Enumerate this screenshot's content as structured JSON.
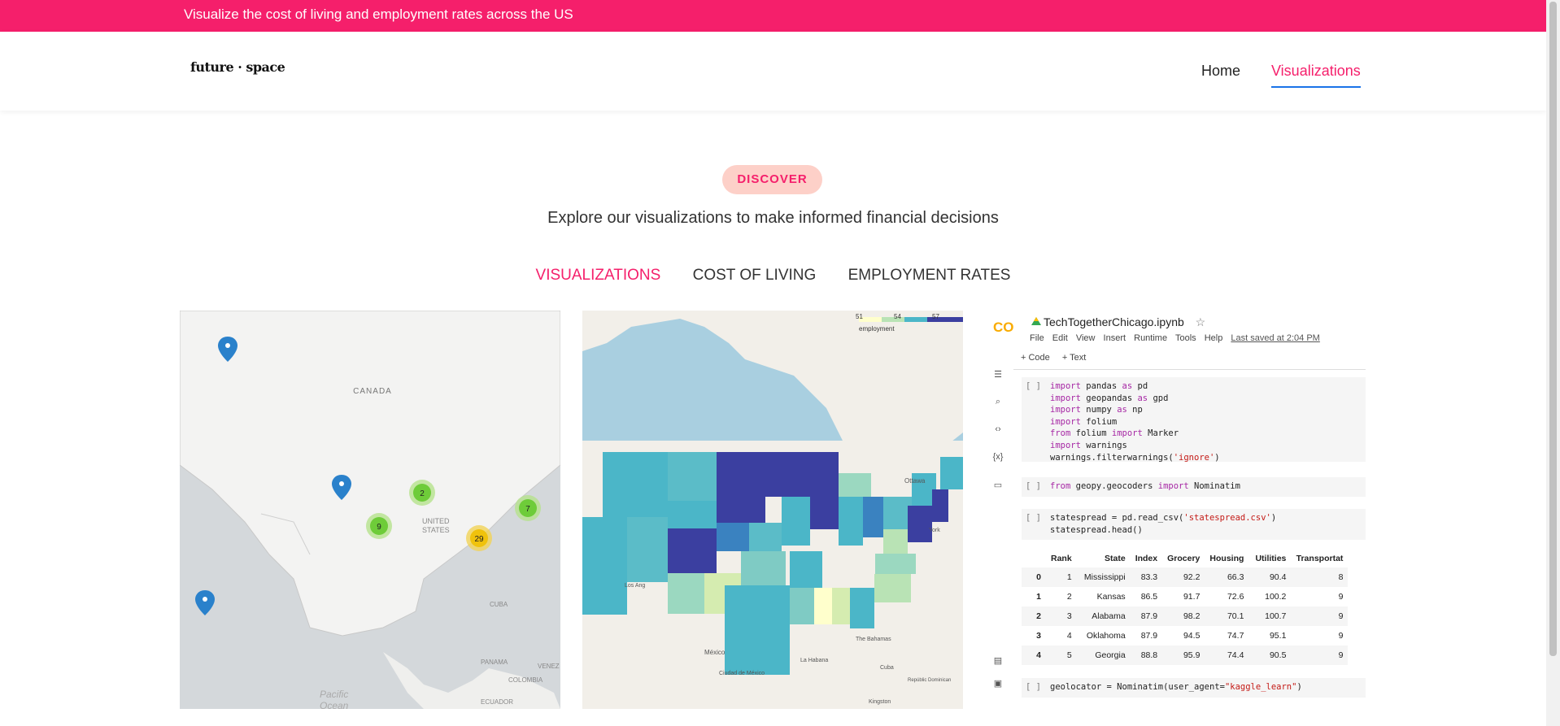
{
  "banner": {
    "text": "Visualize the cost of living and employment rates across the US"
  },
  "brand": {
    "logo_text": "future · space"
  },
  "nav": {
    "home": "Home",
    "visualizations": "Visualizations"
  },
  "discover": {
    "badge": "DISCOVER",
    "subtitle": "Explore our visualizations to make informed financial decisions"
  },
  "tabs": [
    "VISUALIZATIONS",
    "COST OF LIVING",
    "EMPLOYMENT RATES"
  ],
  "map_markers": {
    "labels": {
      "canada": "CANADA",
      "united_states": "UNITED STATES",
      "cuba": "CUBA",
      "panama": "PANAMA",
      "venez": "VENEZ",
      "colombia": "COLOMBIA",
      "ecuador": "ECUADOR",
      "pacific": "Pacific Ocean"
    },
    "clusters": [
      "2",
      "9",
      "7",
      "29"
    ]
  },
  "choropleth": {
    "legend_ticks": [
      "51",
      "54",
      "57"
    ],
    "legend_caption": "employment",
    "places": {
      "ottawa": "Ottawa",
      "york": "York",
      "los_angeles": "Los Ang",
      "mexico": "México",
      "ciudad": "Ciudad de México",
      "bahamas": "The Bahamas",
      "cuba": "Cuba",
      "republica": "Repúblic Dominican",
      "kingston": "Kingston",
      "la_habana": "La Habana"
    }
  },
  "notebook": {
    "title": "TechTogetherChicago.ipynb",
    "menu": [
      "File",
      "Edit",
      "View",
      "Insert",
      "Runtime",
      "Tools",
      "Help"
    ],
    "saved": "Last saved at 2:04 PM",
    "toolbar": [
      "+ Code",
      "+ Text"
    ],
    "cell_bracket": "[ ]",
    "df_headers": [
      "",
      "Rank",
      "State",
      "Index",
      "Grocery",
      "Housing",
      "Utilities",
      "Transportat"
    ],
    "df_rows": [
      [
        "0",
        "1",
        "Mississippi",
        "83.3",
        "92.2",
        "66.3",
        "90.4",
        "8"
      ],
      [
        "1",
        "2",
        "Kansas",
        "86.5",
        "91.7",
        "72.6",
        "100.2",
        "9"
      ],
      [
        "2",
        "3",
        "Alabama",
        "87.9",
        "98.2",
        "70.1",
        "100.7",
        "9"
      ],
      [
        "3",
        "4",
        "Oklahoma",
        "87.9",
        "94.5",
        "74.7",
        "95.1",
        "9"
      ],
      [
        "4",
        "5",
        "Georgia",
        "88.8",
        "95.9",
        "74.4",
        "90.5",
        "9"
      ]
    ]
  },
  "colors": {
    "accent": "#f51f6b",
    "badge_bg": "#fdd0c8",
    "nav_underline": "#1a73e8"
  }
}
